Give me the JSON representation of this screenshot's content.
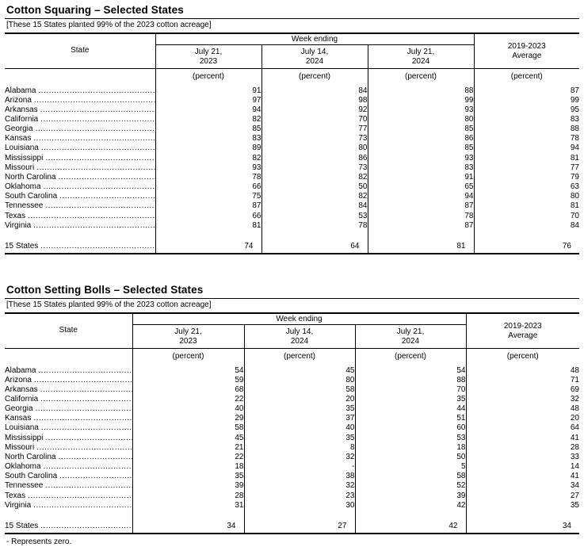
{
  "page": {
    "footnote": "- Represents zero."
  },
  "tables": [
    {
      "title": "Cotton Squaring – Selected States",
      "note": "[These 15 States planted 99% of the 2023 cotton acreage]",
      "header": {
        "state": "State",
        "week_ending": "Week ending",
        "dates": [
          {
            "line1": "July 21,",
            "line2": "2023"
          },
          {
            "line1": "July 14,",
            "line2": "2024"
          },
          {
            "line1": "July 21,",
            "line2": "2024"
          }
        ],
        "average": {
          "line1": "2019-2023",
          "line2": "Average"
        },
        "unit": "(percent)"
      },
      "rows": [
        {
          "state": "Alabama",
          "values": [
            "91",
            "84",
            "88",
            "87"
          ]
        },
        {
          "state": "Arizona",
          "values": [
            "97",
            "98",
            "99",
            "99"
          ]
        },
        {
          "state": "Arkansas",
          "values": [
            "94",
            "92",
            "93",
            "95"
          ]
        },
        {
          "state": "California",
          "values": [
            "82",
            "70",
            "80",
            "83"
          ]
        },
        {
          "state": "Georgia",
          "values": [
            "85",
            "77",
            "85",
            "88"
          ]
        },
        {
          "state": "Kansas",
          "values": [
            "83",
            "73",
            "86",
            "78"
          ]
        },
        {
          "state": "Louisiana",
          "values": [
            "89",
            "80",
            "85",
            "94"
          ]
        },
        {
          "state": "Mississippi",
          "values": [
            "82",
            "86",
            "93",
            "81"
          ]
        },
        {
          "state": "Missouri",
          "values": [
            "93",
            "73",
            "83",
            "77"
          ]
        },
        {
          "state": "North Carolina",
          "values": [
            "78",
            "82",
            "91",
            "79"
          ]
        },
        {
          "state": "Oklahoma",
          "values": [
            "66",
            "50",
            "65",
            "63"
          ]
        },
        {
          "state": "South Carolina",
          "values": [
            "75",
            "82",
            "94",
            "80"
          ]
        },
        {
          "state": "Tennessee",
          "values": [
            "87",
            "84",
            "87",
            "81"
          ]
        },
        {
          "state": "Texas",
          "values": [
            "66",
            "53",
            "78",
            "70"
          ]
        },
        {
          "state": "Virginia",
          "values": [
            "81",
            "78",
            "87",
            "84"
          ]
        }
      ],
      "total": {
        "state": "15 States",
        "values": [
          "74",
          "64",
          "81",
          "76"
        ]
      }
    },
    {
      "title": "Cotton Setting Bolls – Selected States",
      "note": "[These 15 States planted 99% of the 2023 cotton acreage]",
      "header": {
        "state": "State",
        "week_ending": "Week ending",
        "dates": [
          {
            "line1": "July 21,",
            "line2": "2023"
          },
          {
            "line1": "July 14,",
            "line2": "2024"
          },
          {
            "line1": "July 21,",
            "line2": "2024"
          }
        ],
        "average": {
          "line1": "2019-2023",
          "line2": "Average"
        },
        "unit": "(percent)"
      },
      "rows": [
        {
          "state": "Alabama",
          "values": [
            "54",
            "45",
            "54",
            "48"
          ]
        },
        {
          "state": "Arizona",
          "values": [
            "59",
            "80",
            "88",
            "71"
          ]
        },
        {
          "state": "Arkansas",
          "values": [
            "68",
            "58",
            "70",
            "69"
          ]
        },
        {
          "state": "California",
          "values": [
            "22",
            "20",
            "35",
            "32"
          ]
        },
        {
          "state": "Georgia",
          "values": [
            "40",
            "35",
            "44",
            "48"
          ]
        },
        {
          "state": "Kansas",
          "values": [
            "29",
            "37",
            "51",
            "20"
          ]
        },
        {
          "state": "Louisiana",
          "values": [
            "58",
            "40",
            "60",
            "64"
          ]
        },
        {
          "state": "Mississippi",
          "values": [
            "45",
            "35",
            "53",
            "41"
          ]
        },
        {
          "state": "Missouri",
          "values": [
            "21",
            "8",
            "18",
            "28"
          ]
        },
        {
          "state": "North Carolina",
          "values": [
            "22",
            "32",
            "50",
            "33"
          ]
        },
        {
          "state": "Oklahoma",
          "values": [
            "18",
            "-",
            "5",
            "14"
          ]
        },
        {
          "state": "South Carolina",
          "values": [
            "35",
            "38",
            "58",
            "41"
          ]
        },
        {
          "state": "Tennessee",
          "values": [
            "39",
            "32",
            "52",
            "34"
          ]
        },
        {
          "state": "Texas",
          "values": [
            "28",
            "23",
            "39",
            "27"
          ]
        },
        {
          "state": "Virginia",
          "values": [
            "31",
            "30",
            "42",
            "35"
          ]
        }
      ],
      "total": {
        "state": "15 States",
        "values": [
          "34",
          "27",
          "42",
          "34"
        ]
      }
    }
  ]
}
